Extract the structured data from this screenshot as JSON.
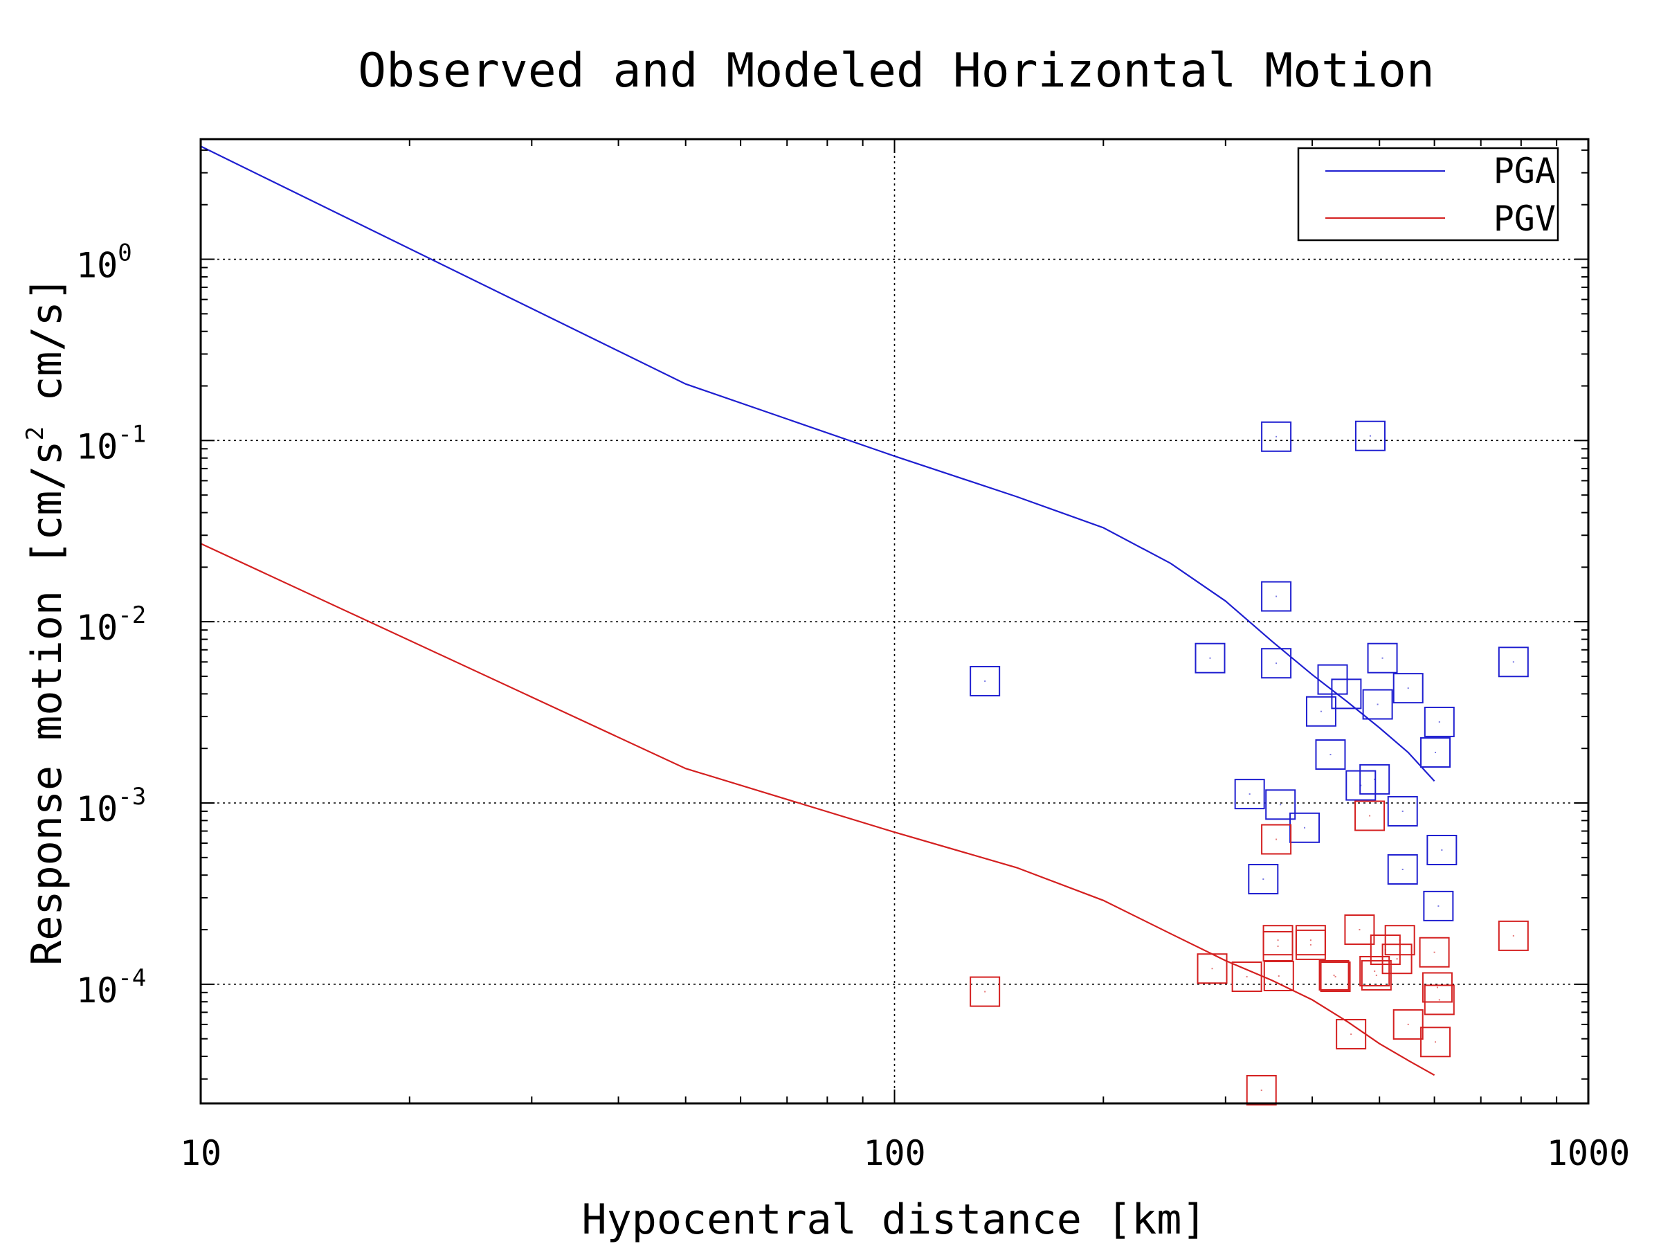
{
  "chart_data": {
    "type": "scatter",
    "title": "Observed and Modeled Horizontal Motion",
    "xlabel": "Hypocentral distance [km]",
    "ylabel": "Response motion [cm/s",
    "ylabel_sup": "2",
    "ylabel_end": " cm/s]",
    "xscale": "log",
    "yscale": "log",
    "xlim": [
      10,
      1000
    ],
    "ylim": [
      2.2e-05,
      4.6
    ],
    "grid": true,
    "legend_position": "top-right",
    "x_ticks": [
      {
        "value": 10,
        "label": "10"
      },
      {
        "value": 100,
        "label": "100"
      },
      {
        "value": 1000,
        "label": "1000"
      }
    ],
    "y_ticks": [
      {
        "value": 1,
        "base": "10",
        "exp": "0"
      },
      {
        "value": 0.1,
        "base": "10",
        "exp": "-1"
      },
      {
        "value": 0.01,
        "base": "10",
        "exp": "-2"
      },
      {
        "value": 0.001,
        "base": "10",
        "exp": "-3"
      },
      {
        "value": 0.0001,
        "base": "10",
        "exp": "-4"
      }
    ],
    "series": [
      {
        "name": "PGA",
        "color": "#1f1fd0",
        "line": [
          {
            "x": 10,
            "y": 4.2
          },
          {
            "x": 50,
            "y": 0.205
          },
          {
            "x": 100,
            "y": 0.082
          },
          {
            "x": 150,
            "y": 0.049
          },
          {
            "x": 200,
            "y": 0.033
          },
          {
            "x": 250,
            "y": 0.021
          },
          {
            "x": 300,
            "y": 0.013
          },
          {
            "x": 350,
            "y": 0.0078
          },
          {
            "x": 400,
            "y": 0.0051
          },
          {
            "x": 450,
            "y": 0.0036
          },
          {
            "x": 500,
            "y": 0.0026
          },
          {
            "x": 550,
            "y": 0.0019
          },
          {
            "x": 600,
            "y": 0.00132
          }
        ],
        "points": [
          {
            "x": 135,
            "y": 0.0047
          },
          {
            "x": 285,
            "y": 0.0063
          },
          {
            "x": 355,
            "y": 0.105
          },
          {
            "x": 355,
            "y": 0.0138
          },
          {
            "x": 355,
            "y": 0.0059
          },
          {
            "x": 485,
            "y": 0.106
          },
          {
            "x": 428,
            "y": 0.0048
          },
          {
            "x": 412,
            "y": 0.0032
          },
          {
            "x": 448,
            "y": 0.004
          },
          {
            "x": 497,
            "y": 0.0035
          },
          {
            "x": 505,
            "y": 0.0063
          },
          {
            "x": 550,
            "y": 0.0043
          },
          {
            "x": 610,
            "y": 0.0028
          },
          {
            "x": 425,
            "y": 0.00185
          },
          {
            "x": 470,
            "y": 0.00125
          },
          {
            "x": 492,
            "y": 0.00135
          },
          {
            "x": 540,
            "y": 0.0009
          },
          {
            "x": 602,
            "y": 0.0019
          },
          {
            "x": 325,
            "y": 0.00112
          },
          {
            "x": 360,
            "y": 0.00098
          },
          {
            "x": 390,
            "y": 0.00073
          },
          {
            "x": 340,
            "y": 0.00038
          },
          {
            "x": 540,
            "y": 0.00043
          },
          {
            "x": 615,
            "y": 0.00055
          },
          {
            "x": 608,
            "y": 0.00027
          },
          {
            "x": 780,
            "y": 0.006
          }
        ]
      },
      {
        "name": "PGV",
        "color": "#d42020",
        "line": [
          {
            "x": 10,
            "y": 0.027
          },
          {
            "x": 50,
            "y": 0.00155
          },
          {
            "x": 100,
            "y": 0.00069
          },
          {
            "x": 150,
            "y": 0.00044
          },
          {
            "x": 200,
            "y": 0.00029
          },
          {
            "x": 250,
            "y": 0.00019
          },
          {
            "x": 300,
            "y": 0.000135
          },
          {
            "x": 350,
            "y": 0.000105
          },
          {
            "x": 400,
            "y": 8.2e-05
          },
          {
            "x": 450,
            "y": 6.2e-05
          },
          {
            "x": 500,
            "y": 4.7e-05
          },
          {
            "x": 550,
            "y": 3.8e-05
          },
          {
            "x": 600,
            "y": 3.15e-05
          }
        ],
        "points": [
          {
            "x": 135,
            "y": 9.1e-05
          },
          {
            "x": 287,
            "y": 0.000122
          },
          {
            "x": 322,
            "y": 0.00011
          },
          {
            "x": 338,
            "y": 2.6e-05
          },
          {
            "x": 355,
            "y": 0.00063
          },
          {
            "x": 357,
            "y": 0.000175
          },
          {
            "x": 357,
            "y": 0.000162
          },
          {
            "x": 358,
            "y": 0.000111
          },
          {
            "x": 398,
            "y": 0.000175
          },
          {
            "x": 398,
            "y": 0.000165
          },
          {
            "x": 430,
            "y": 0.000112
          },
          {
            "x": 432,
            "y": 0.00011
          },
          {
            "x": 455,
            "y": 5.3e-05
          },
          {
            "x": 468,
            "y": 0.0002
          },
          {
            "x": 484,
            "y": 0.00085
          },
          {
            "x": 492,
            "y": 0.000118
          },
          {
            "x": 495,
            "y": 0.000112
          },
          {
            "x": 510,
            "y": 0.000155
          },
          {
            "x": 535,
            "y": 0.000175
          },
          {
            "x": 530,
            "y": 0.000138
          },
          {
            "x": 550,
            "y": 6e-05
          },
          {
            "x": 600,
            "y": 0.00015
          },
          {
            "x": 606,
            "y": 9.6e-05
          },
          {
            "x": 610,
            "y": 8.2e-05
          },
          {
            "x": 602,
            "y": 4.8e-05
          },
          {
            "x": 780,
            "y": 0.000185
          }
        ]
      }
    ]
  }
}
